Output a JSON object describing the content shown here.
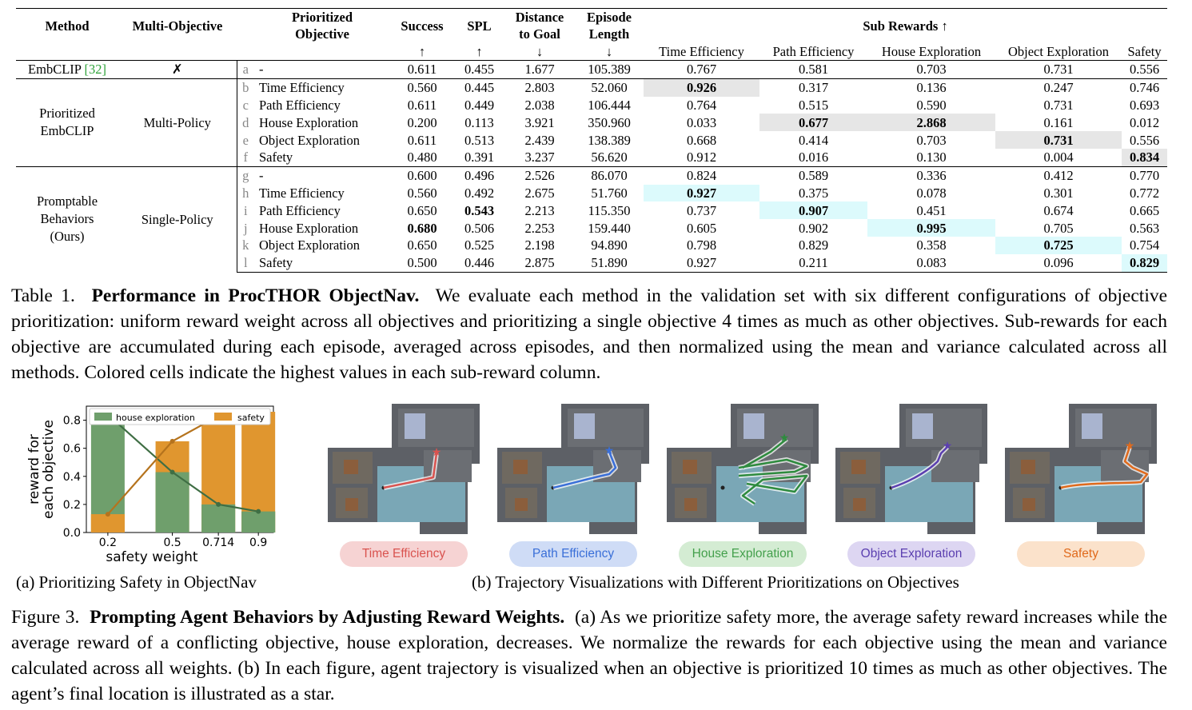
{
  "table": {
    "headers": {
      "method": "Method",
      "multi_objective": "Multi-Objective",
      "prioritized_objective": [
        "Prioritized",
        "Objective"
      ],
      "success": "Success",
      "spl": "SPL",
      "distance": [
        "Distance",
        "to Goal"
      ],
      "episode": [
        "Episode",
        "Length"
      ],
      "sub_rewards": "Sub Rewards ↑",
      "arrows": [
        "↑",
        "↑",
        "↓",
        "↓"
      ],
      "sub_cols": [
        "Time Efficiency",
        "Path Efficiency",
        "House Exploration",
        "Object Exploration",
        "Safety"
      ]
    },
    "groups": [
      {
        "method": "EmbCLIP",
        "ref": "[32]",
        "multi": "✗"
      },
      {
        "method_lines": [
          "Prioritized",
          "EmbCLIP"
        ],
        "multi": "Multi-Policy"
      },
      {
        "method_lines": [
          "Promptable",
          "Behaviors",
          "(Ours)"
        ],
        "multi": "Single-Policy"
      }
    ],
    "rows": [
      {
        "letter": "a",
        "objective": "-",
        "vals": [
          "0.611",
          "0.455",
          "1.677",
          "105.389",
          "0.767",
          "0.581",
          "0.703",
          "0.731",
          "0.556"
        ]
      },
      {
        "letter": "b",
        "objective": "Time Efficiency",
        "vals": [
          "0.560",
          "0.445",
          "2.803",
          "52.060",
          "0.926",
          "0.317",
          "0.136",
          "0.247",
          "0.746"
        ]
      },
      {
        "letter": "c",
        "objective": "Path Efficiency",
        "vals": [
          "0.611",
          "0.449",
          "2.038",
          "106.444",
          "0.764",
          "0.515",
          "0.590",
          "0.731",
          "0.693"
        ]
      },
      {
        "letter": "d",
        "objective": "House Exploration",
        "vals": [
          "0.200",
          "0.113",
          "3.921",
          "350.960",
          "0.033",
          "0.677",
          "2.868",
          "0.161",
          "0.012"
        ]
      },
      {
        "letter": "e",
        "objective": "Object Exploration",
        "vals": [
          "0.611",
          "0.513",
          "2.439",
          "138.389",
          "0.668",
          "0.414",
          "0.703",
          "0.731",
          "0.556"
        ]
      },
      {
        "letter": "f",
        "objective": "Safety",
        "vals": [
          "0.480",
          "0.391",
          "3.237",
          "56.620",
          "0.912",
          "0.016",
          "0.130",
          "0.004",
          "0.834"
        ]
      },
      {
        "letter": "g",
        "objective": "-",
        "vals": [
          "0.600",
          "0.496",
          "2.526",
          "86.070",
          "0.824",
          "0.589",
          "0.336",
          "0.412",
          "0.770"
        ]
      },
      {
        "letter": "h",
        "objective": "Time Efficiency",
        "vals": [
          "0.560",
          "0.492",
          "2.675",
          "51.760",
          "0.927",
          "0.375",
          "0.078",
          "0.301",
          "0.772"
        ]
      },
      {
        "letter": "i",
        "objective": "Path Efficiency",
        "vals": [
          "0.650",
          "0.543",
          "2.213",
          "115.350",
          "0.737",
          "0.907",
          "0.451",
          "0.674",
          "0.665"
        ]
      },
      {
        "letter": "j",
        "objective": "House Exploration",
        "vals": [
          "0.680",
          "0.506",
          "2.253",
          "159.440",
          "0.605",
          "0.902",
          "0.995",
          "0.705",
          "0.563"
        ]
      },
      {
        "letter": "k",
        "objective": "Object Exploration",
        "vals": [
          "0.650",
          "0.525",
          "2.198",
          "94.890",
          "0.798",
          "0.829",
          "0.358",
          "0.725",
          "0.754"
        ]
      },
      {
        "letter": "l",
        "objective": "Safety",
        "vals": [
          "0.500",
          "0.446",
          "2.875",
          "51.890",
          "0.927",
          "0.211",
          "0.083",
          "0.096",
          "0.829"
        ]
      }
    ]
  },
  "table_caption": {
    "label": "Table 1.",
    "title": "Performance in ProcTHOR ObjectNav.",
    "text": "We evaluate each method in the validation set with six different configurations of objective prioritization: uniform reward weight across all objectives and prioritizing a single objective 4 times as much as other objectives. Sub-rewards for each objective are accumulated during each episode, averaged across episodes, and then normalized using the mean and variance calculated across all methods. Colored cells indicate the highest values in each sub-reward column."
  },
  "chart_data": {
    "type": "bar",
    "categories": [
      "0.2",
      "0.5",
      "0.714",
      "0.9"
    ],
    "xlabel": "safety weight",
    "ylabel": [
      "reward for",
      "each objective"
    ],
    "ylim": [
      0,
      0.9
    ],
    "yticks": [
      "0.0",
      "0.2",
      "0.4",
      "0.6",
      "0.8"
    ],
    "legend_position": "top",
    "series": [
      {
        "name": "house exploration",
        "color": "#6f9f6c",
        "values": [
          0.84,
          0.43,
          0.2,
          0.15
        ]
      },
      {
        "name": "safety",
        "color": "#e0962f",
        "values": [
          0.13,
          0.65,
          0.83,
          0.86
        ]
      }
    ]
  },
  "subcaption_a": "(a) Prioritizing Safety in ObjectNav",
  "subcaption_b": "(b) Trajectory Visualizations with Different Prioritizations on Objectives",
  "panels": [
    {
      "label": "Time Efficiency",
      "color": "#d9534f",
      "bg": "#f6d3d3",
      "text_color": "#d9534f"
    },
    {
      "label": "Path Efficiency",
      "color": "#3a6fd8",
      "bg": "#cfdcf6",
      "text_color": "#3a6fd8"
    },
    {
      "label": "House Exploration",
      "color": "#2e8b3e",
      "bg": "#d4ecd3",
      "text_color": "#44a04c"
    },
    {
      "label": "Object Exploration",
      "color": "#5b3fb0",
      "bg": "#ddd6f2",
      "text_color": "#5b3fb0"
    },
    {
      "label": "Safety",
      "color": "#e06a1c",
      "bg": "#fbe2cb",
      "text_color": "#e06a1c"
    }
  ],
  "figure_caption": {
    "label": "Figure 3.",
    "title": "Prompting Agent Behaviors by Adjusting Reward Weights.",
    "text": "(a) As we prioritize safety more, the average safety reward increases while the average reward of a conflicting objective, house exploration, decreases. We normalize the rewards for each objective using the mean and variance calculated across all weights. (b) In each figure, agent trajectory is visualized when an objective is prioritized 10 times as much as other objectives. The agent’s final location is illustrated as a star."
  }
}
